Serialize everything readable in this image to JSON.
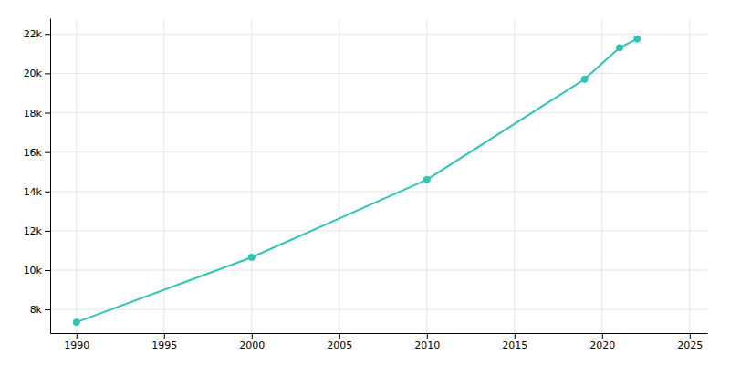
{
  "chart_data": {
    "type": "line",
    "x": [
      1990,
      2000,
      2010,
      2019,
      2021,
      2022
    ],
    "values": [
      7350,
      10650,
      14600,
      19700,
      21300,
      21750
    ],
    "color": "#2ec4b6",
    "marker": "circle",
    "xlim": [
      1988.5,
      2026
    ],
    "xticks": [
      1990,
      1995,
      2000,
      2005,
      2010,
      2015,
      2020,
      2025
    ],
    "ylim": [
      6800,
      22800
    ],
    "yticks": [
      {
        "value": 8000,
        "label": "8k"
      },
      {
        "value": 10000,
        "label": "10k"
      },
      {
        "value": 12000,
        "label": "12k"
      },
      {
        "value": 14000,
        "label": "14k"
      },
      {
        "value": 16000,
        "label": "16k"
      },
      {
        "value": 18000,
        "label": "18k"
      },
      {
        "value": 20000,
        "label": "20k"
      },
      {
        "value": 22000,
        "label": "22k"
      }
    ],
    "grid": true
  }
}
